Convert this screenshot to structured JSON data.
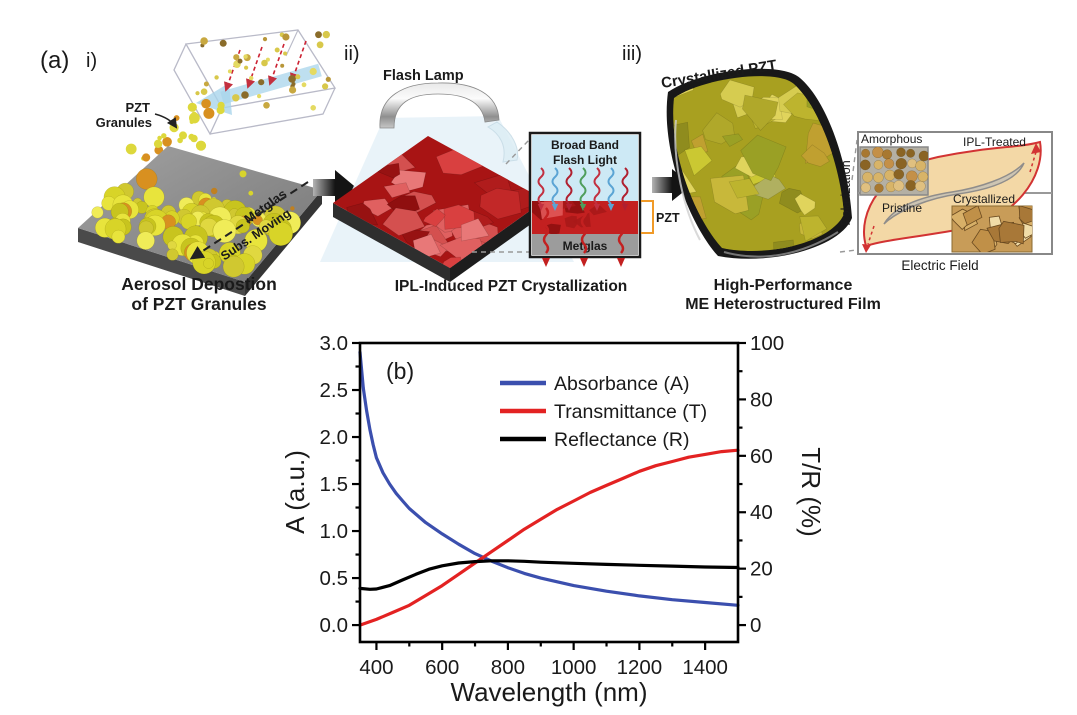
{
  "panel_a": {
    "label": "(a)",
    "step_i": {
      "label": "i)",
      "pzt_label_line1": "PZT",
      "pzt_label_line2": "Granules",
      "substrate_label": "Metglas",
      "moving_label": "Subs. Moving",
      "caption_line1": "Aerosol Depostion",
      "caption_line2": "of PZT Granules"
    },
    "step_ii": {
      "label": "ii)",
      "lamp_label": "Flash Lamp",
      "caption": "IPL-Induced PZT Crystallization",
      "inset": {
        "light_line1": "Broad Band",
        "light_line2": "Flash Light",
        "layer_label": "PZT",
        "substrate_label": "Metglas"
      }
    },
    "step_iii": {
      "label": "iii)",
      "film_label": "Crystallized PZT",
      "caption_line1": "High-Performance",
      "caption_line2": "ME Heterostructured Film",
      "inset": {
        "amorphous_label": "Amorphous",
        "ipl_label": "IPL-Treated",
        "pristine_label": "Pristine",
        "crystallized_label": "Crystallized",
        "x_axis_label": "Electric Field",
        "y_axis_label": "Polarization"
      }
    }
  },
  "colors": {
    "caption_red": "#d42222",
    "pzt_orange": "#f09a28",
    "ipl_red": "#d23333",
    "pristine_gray": "#8a8a8a",
    "crystallized_brown": "#a8321e",
    "absorbance_blue": "#3b4fae",
    "transmittance_red": "#e32222",
    "reflectance_black": "#000000"
  },
  "chart_data": {
    "type": "line",
    "panel_label": "(b)",
    "xlabel": "Wavelength (nm)",
    "ylabel_left": "A (a.u.)",
    "ylabel_right": "T/R (%)",
    "xlim": [
      350,
      1500
    ],
    "ylim_left": [
      -0.18,
      3.0
    ],
    "ylim_right": [
      -6,
      100
    ],
    "xticks": [
      400,
      600,
      800,
      1000,
      1200,
      1400
    ],
    "xticks_minor": [
      500,
      700,
      900,
      1100,
      1300
    ],
    "yticks_left": [
      "0.0",
      "0.5",
      "1.0",
      "1.5",
      "2.0",
      "2.5",
      "3.0"
    ],
    "yticks_left_minor": [
      0.25,
      0.75,
      1.25,
      1.75,
      2.25,
      2.75
    ],
    "yticks_right": [
      0,
      20,
      40,
      60,
      80,
      100
    ],
    "yticks_right_minor": [
      10,
      30,
      50,
      70,
      90
    ],
    "grid": false,
    "legend_position": "inside-top-center",
    "legend": [
      {
        "label": "Absorbance (A)",
        "color": "#3b4fae"
      },
      {
        "label": "Transmittance (T)",
        "color": "#e32222"
      },
      {
        "label": "Reflectance (R)",
        "color": "#000000"
      }
    ],
    "series": [
      {
        "id": "absorbance",
        "name": "Absorbance (A)",
        "axis": "left",
        "color": "#3b4fae",
        "points": [
          [
            350,
            2.9
          ],
          [
            360,
            2.52
          ],
          [
            370,
            2.28
          ],
          [
            380,
            2.08
          ],
          [
            390,
            1.92
          ],
          [
            400,
            1.78
          ],
          [
            420,
            1.62
          ],
          [
            440,
            1.5
          ],
          [
            460,
            1.4
          ],
          [
            480,
            1.32
          ],
          [
            500,
            1.24
          ],
          [
            550,
            1.09
          ],
          [
            600,
            0.97
          ],
          [
            650,
            0.86
          ],
          [
            700,
            0.76
          ],
          [
            750,
            0.68
          ],
          [
            800,
            0.61
          ],
          [
            850,
            0.55
          ],
          [
            900,
            0.5
          ],
          [
            950,
            0.46
          ],
          [
            1000,
            0.42
          ],
          [
            1100,
            0.36
          ],
          [
            1200,
            0.31
          ],
          [
            1300,
            0.27
          ],
          [
            1400,
            0.24
          ],
          [
            1500,
            0.21
          ]
        ]
      },
      {
        "id": "transmittance",
        "name": "Transmittance (T)",
        "axis": "right",
        "color": "#e32222",
        "points": [
          [
            350,
            0
          ],
          [
            400,
            2
          ],
          [
            450,
            4.5
          ],
          [
            500,
            7
          ],
          [
            550,
            10.5
          ],
          [
            600,
            14
          ],
          [
            650,
            18
          ],
          [
            700,
            22
          ],
          [
            750,
            26
          ],
          [
            800,
            30
          ],
          [
            850,
            34
          ],
          [
            900,
            37.5
          ],
          [
            950,
            41
          ],
          [
            1000,
            44
          ],
          [
            1050,
            47
          ],
          [
            1100,
            49.5
          ],
          [
            1150,
            52
          ],
          [
            1200,
            54.5
          ],
          [
            1250,
            56.5
          ],
          [
            1300,
            58
          ],
          [
            1350,
            59.5
          ],
          [
            1400,
            60.5
          ],
          [
            1450,
            61.5
          ],
          [
            1500,
            62
          ]
        ]
      },
      {
        "id": "reflectance",
        "name": "Reflectance (R)",
        "axis": "right",
        "color": "#000000",
        "points": [
          [
            350,
            13
          ],
          [
            380,
            12.7
          ],
          [
            400,
            12.8
          ],
          [
            440,
            14
          ],
          [
            480,
            16
          ],
          [
            520,
            18
          ],
          [
            560,
            19.8
          ],
          [
            600,
            21
          ],
          [
            650,
            22
          ],
          [
            700,
            22.5
          ],
          [
            750,
            22.8
          ],
          [
            800,
            22.8
          ],
          [
            850,
            22.6
          ],
          [
            900,
            22.3
          ],
          [
            1000,
            21.9
          ],
          [
            1100,
            21.5
          ],
          [
            1200,
            21.2
          ],
          [
            1300,
            20.9
          ],
          [
            1400,
            20.6
          ],
          [
            1500,
            20.4
          ]
        ]
      }
    ]
  }
}
